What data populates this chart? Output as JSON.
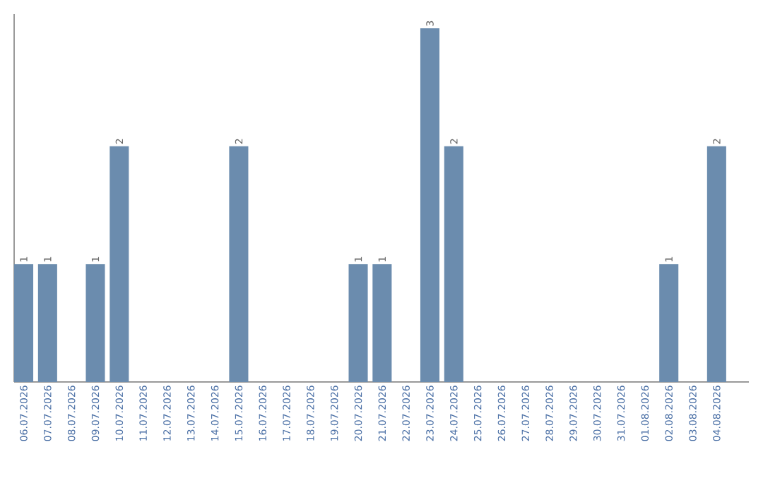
{
  "chart_data": {
    "type": "bar",
    "categories": [
      "06.07.2026",
      "07.07.2026",
      "08.07.2026",
      "09.07.2026",
      "10.07.2026",
      "11.07.2026",
      "12.07.2026",
      "13.07.2026",
      "14.07.2026",
      "15.07.2026",
      "16.07.2026",
      "17.07.2026",
      "18.07.2026",
      "19.07.2026",
      "20.07.2026",
      "21.07.2026",
      "22.07.2026",
      "23.07.2026",
      "24.07.2026",
      "25.07.2026",
      "26.07.2026",
      "27.07.2026",
      "28.07.2026",
      "29.07.2026",
      "30.07.2026",
      "31.07.2026",
      "01.08.2026",
      "02.08.2026",
      "03.08.2026",
      "04.08.2026"
    ],
    "values": [
      1,
      1,
      0,
      1,
      2,
      0,
      0,
      0,
      0,
      2,
      0,
      0,
      0,
      0,
      1,
      1,
      0,
      3,
      2,
      0,
      0,
      0,
      0,
      0,
      0,
      0,
      0,
      1,
      0,
      2
    ],
    "value_labels": [
      "1",
      "1",
      null,
      "1",
      "2",
      null,
      null,
      null,
      null,
      "2",
      null,
      null,
      null,
      null,
      "1",
      "1",
      null,
      "3",
      "2",
      null,
      null,
      null,
      null,
      null,
      null,
      null,
      null,
      "1",
      null,
      "2"
    ],
    "color": "#6b8cae"
  }
}
